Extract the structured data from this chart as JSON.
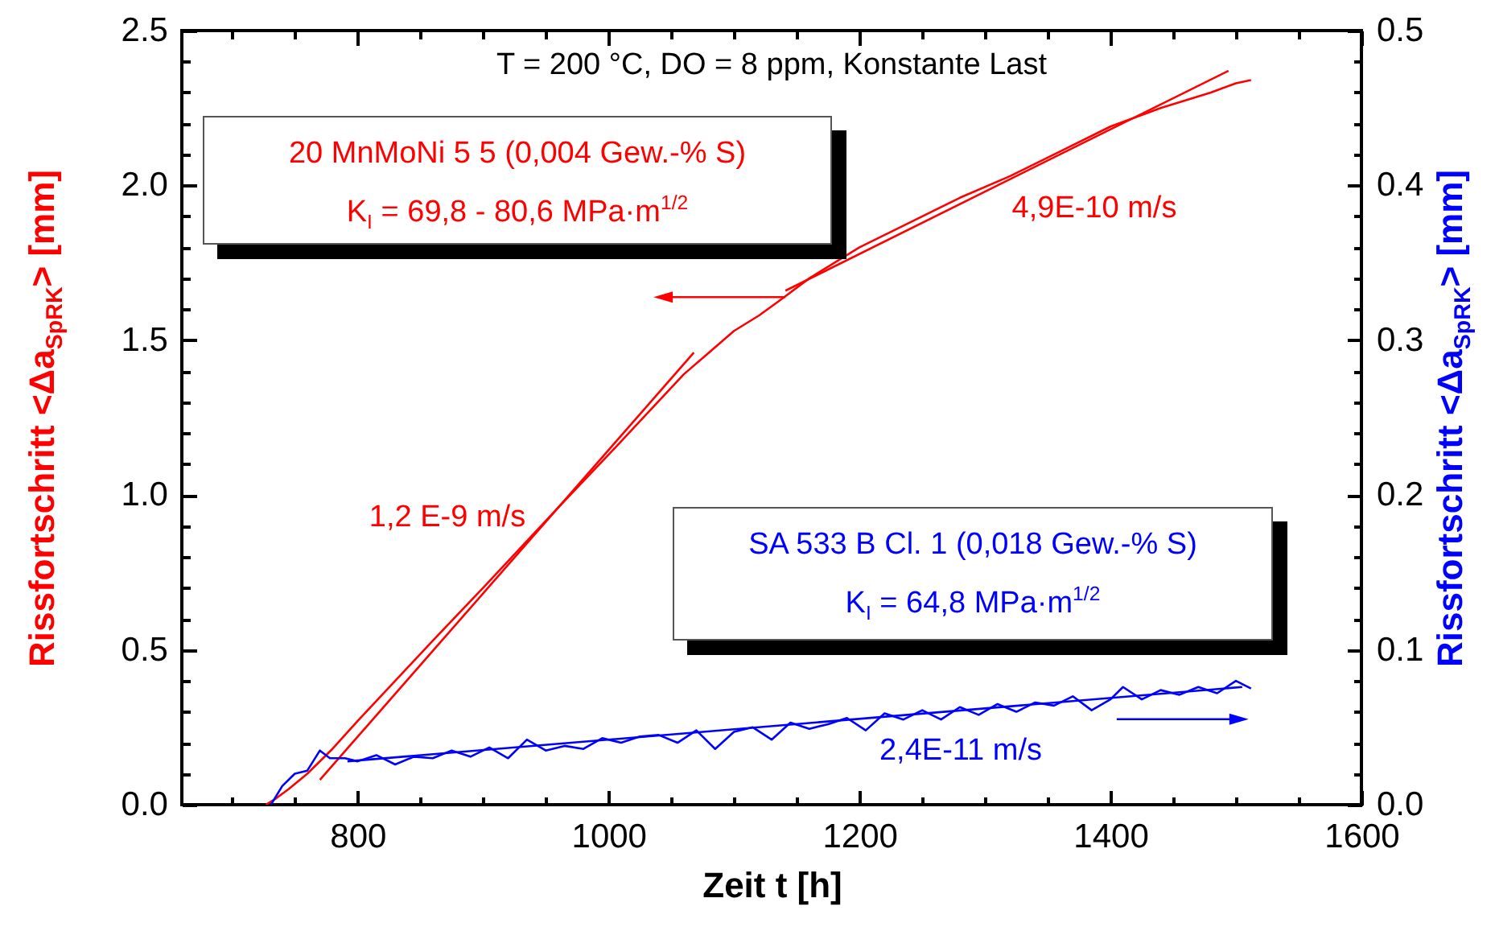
{
  "chart_data": {
    "type": "line",
    "title": "T = 200 °C, DO = 8 ppm, Konstante Last",
    "xlabel": "Zeit t  [h]",
    "ylabel": "Rissfortschritt <Δa$_{SpRK}$>  [mm]",
    "y2label": "Rissfortschritt <Δa$_{SpRK}$>  [mm]",
    "xlim": [
      660,
      1600
    ],
    "xticks": [
      {
        "value": 700,
        "label": null
      },
      {
        "value": 750,
        "label": null
      },
      800,
      {
        "value": 850,
        "label": null
      },
      {
        "value": 900,
        "label": null
      },
      {
        "value": 950,
        "label": null
      },
      1000,
      {
        "value": 1050,
        "label": null
      },
      {
        "value": 1100,
        "label": null
      },
      {
        "value": 1150,
        "label": null
      },
      1200,
      {
        "value": 1250,
        "label": null
      },
      {
        "value": 1300,
        "label": null
      },
      {
        "value": 1350,
        "label": null
      },
      1400,
      {
        "value": 1450,
        "label": null
      },
      {
        "value": 1500,
        "label": null
      },
      {
        "value": 1550,
        "label": null
      },
      1600
    ],
    "ylim": [
      0,
      2.5
    ],
    "yticks": [
      {
        "value": 0,
        "label": "0.0"
      },
      {
        "value": 0.1,
        "label": null
      },
      {
        "value": 0.2,
        "label": null
      },
      {
        "value": 0.3,
        "label": null
      },
      {
        "value": 0.4,
        "label": null
      },
      0.5,
      {
        "value": 0.6,
        "label": null
      },
      {
        "value": 0.7,
        "label": null
      },
      {
        "value": 0.8,
        "label": null
      },
      {
        "value": 0.9,
        "label": null
      },
      {
        "value": 1,
        "label": "1.0"
      },
      {
        "value": 1.1,
        "label": null
      },
      {
        "value": 1.2,
        "label": null
      },
      {
        "value": 1.3,
        "label": null
      },
      {
        "value": 1.4,
        "label": null
      },
      1.5,
      {
        "value": 1.6,
        "label": null
      },
      {
        "value": 1.7,
        "label": null
      },
      {
        "value": 1.8,
        "label": null
      },
      {
        "value": 1.9,
        "label": null
      },
      {
        "value": 2,
        "label": "2.0"
      },
      {
        "value": 2.1,
        "label": null
      },
      {
        "value": 2.2,
        "label": null
      },
      {
        "value": 2.3,
        "label": null
      },
      {
        "value": 2.4,
        "label": null
      },
      2.5
    ],
    "y2lim": [
      0,
      0.5
    ],
    "y2ticks": [
      {
        "value": 0,
        "label": "0.0"
      },
      {
        "value": 0.02,
        "label": null
      },
      {
        "value": 0.04,
        "label": null
      },
      {
        "value": 0.06,
        "label": null
      },
      {
        "value": 0.08,
        "label": null
      },
      0.1,
      {
        "value": 0.12,
        "label": null
      },
      {
        "value": 0.14,
        "label": null
      },
      {
        "value": 0.16,
        "label": null
      },
      {
        "value": 0.18,
        "label": null
      },
      0.2,
      {
        "value": 0.22,
        "label": null
      },
      {
        "value": 0.24,
        "label": null
      },
      {
        "value": 0.26,
        "label": null
      },
      {
        "value": 0.28,
        "label": null
      },
      0.3,
      {
        "value": 0.32,
        "label": null
      },
      {
        "value": 0.34,
        "label": null
      },
      {
        "value": 0.36,
        "label": null
      },
      {
        "value": 0.38,
        "label": null
      },
      0.4,
      {
        "value": 0.42,
        "label": null
      },
      {
        "value": 0.44,
        "label": null
      },
      {
        "value": 0.46,
        "label": null
      },
      {
        "value": 0.48,
        "label": null
      },
      0.5
    ],
    "series": [
      {
        "color": "#ff0000",
        "x": [
          727,
          735,
          745,
          760,
          780,
          800,
          830,
          860,
          900,
          930,
          960,
          1000,
          1030,
          1060,
          1080,
          1100,
          1120,
          1137,
          1160,
          1200,
          1240,
          1280,
          1320,
          1360,
          1400,
          1440,
          1480,
          1500,
          1512
        ],
        "values": [
          0,
          0.02,
          0.05,
          0.1,
          0.18,
          0.27,
          0.4,
          0.53,
          0.7,
          0.83,
          0.96,
          1.13,
          1.26,
          1.39,
          1.46,
          1.53,
          1.58,
          1.63,
          1.7,
          1.8,
          1.88,
          1.96,
          2.03,
          2.11,
          2.19,
          2.25,
          2.3,
          2.33,
          2.34
        ]
      },
      {
        "color": "#ff0000",
        "x": [
          770,
          1068
        ],
        "values": [
          0.08,
          1.46
        ]
      },
      {
        "color": "#ff0000",
        "x": [
          1141,
          1494
        ],
        "values": [
          1.66,
          2.37
        ]
      },
      {
        "color": "#0000ff",
        "axis": "y2",
        "x": [
          731,
          740,
          750,
          760,
          770,
          778,
          790,
          800,
          815,
          830,
          845,
          860,
          875,
          890,
          905,
          920,
          935,
          950,
          965,
          980,
          995,
          1010,
          1025,
          1040,
          1055,
          1070,
          1085,
          1100,
          1115,
          1130,
          1145,
          1160,
          1175,
          1190,
          1205,
          1220,
          1235,
          1250,
          1265,
          1280,
          1295,
          1310,
          1325,
          1340,
          1355,
          1370,
          1385,
          1400,
          1410,
          1425,
          1440,
          1455,
          1470,
          1485,
          1500,
          1512
        ],
        "values": [
          0,
          0.012,
          0.02,
          0.022,
          0.035,
          0.03,
          0.03,
          0.028,
          0.032,
          0.026,
          0.031,
          0.03,
          0.035,
          0.031,
          0.037,
          0.03,
          0.042,
          0.035,
          0.038,
          0.036,
          0.043,
          0.04,
          0.044,
          0.045,
          0.04,
          0.048,
          0.036,
          0.047,
          0.05,
          0.042,
          0.053,
          0.049,
          0.052,
          0.056,
          0.048,
          0.059,
          0.055,
          0.061,
          0.055,
          0.063,
          0.058,
          0.065,
          0.06,
          0.066,
          0.064,
          0.07,
          0.061,
          0.068,
          0.076,
          0.068,
          0.074,
          0.071,
          0.076,
          0.072,
          0.08,
          0.075
        ]
      },
      {
        "color": "#0000ff",
        "axis": "y2",
        "x": [
          792,
          1505
        ],
        "values": [
          0.028,
          0.076
        ]
      }
    ],
    "annotations": [
      "20 MnMoNi 5 5 (0,004 Gew.-% S)",
      "K$_{I}$ = 69,8 - 80,6 MPa·m$^{1/2}$",
      "SA 533 B Cl. 1 (0,018 Gew.-% S)",
      "K$_{I}$ = 64,8 MPa·m$^{1/2}$",
      "1,2 E-9 m/s",
      "4,9E-10 m/s",
      "2,4E-11 m/s"
    ]
  }
}
